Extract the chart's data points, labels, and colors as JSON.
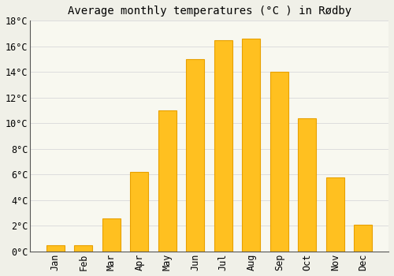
{
  "title": "Average monthly temperatures (°C ) in Rødby",
  "months": [
    "Jan",
    "Feb",
    "Mar",
    "Apr",
    "May",
    "Jun",
    "Jul",
    "Aug",
    "Sep",
    "Oct",
    "Nov",
    "Dec"
  ],
  "values": [
    0.5,
    0.5,
    2.6,
    6.2,
    11.0,
    15.0,
    16.5,
    16.6,
    14.0,
    10.4,
    5.8,
    2.1
  ],
  "bar_color": "#FFC020",
  "bar_edge_color": "#E8A000",
  "background_color": "#F0F0E8",
  "plot_bg_color": "#F8F8F0",
  "ylim": [
    0,
    18
  ],
  "yticks": [
    0,
    2,
    4,
    6,
    8,
    10,
    12,
    14,
    16,
    18
  ],
  "ytick_labels": [
    "0°C",
    "2°C",
    "4°C",
    "6°C",
    "8°C",
    "10°C",
    "12°C",
    "14°C",
    "16°C",
    "18°C"
  ],
  "title_fontsize": 10,
  "tick_fontsize": 8.5,
  "grid_color": "#DDDDDD",
  "spine_color": "#555555"
}
